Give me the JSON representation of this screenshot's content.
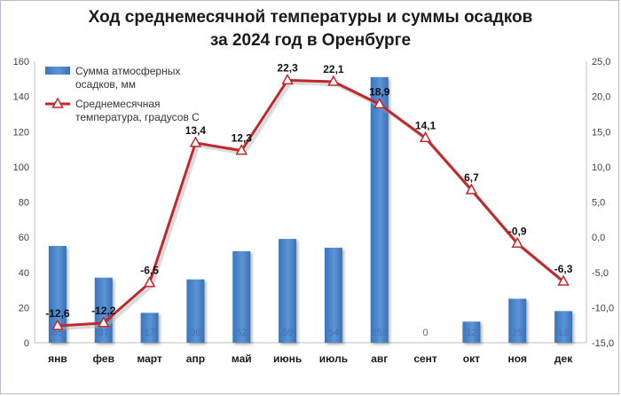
{
  "chart_data": {
    "type": "bar+line",
    "title_line1": "Ход среднемесячной температуры и суммы осадков",
    "title_line2": "за 2024 год в Оренбурге",
    "categories": [
      "янв",
      "фев",
      "март",
      "апр",
      "май",
      "июнь",
      "июль",
      "авг",
      "сент",
      "окт",
      "ноя",
      "дек"
    ],
    "series": [
      {
        "name": "Сумма атмосферных осадков, мм",
        "type": "bar",
        "axis": "left",
        "color": "#4a86c8",
        "values": [
          55,
          37,
          17,
          36,
          52,
          59,
          54,
          151,
          0,
          12,
          25,
          18
        ],
        "labels": [
          "55",
          "37",
          "17",
          "36",
          "52",
          "59",
          "54",
          "151",
          "0",
          "12",
          "25",
          "18"
        ]
      },
      {
        "name": "Среднемесячная температура, градусов С",
        "type": "line",
        "axis": "right",
        "color": "#c0282d",
        "values": [
          -12.6,
          -12.2,
          -6.5,
          13.4,
          12.3,
          22.3,
          22.1,
          18.9,
          14.1,
          6.7,
          -0.9,
          -6.3
        ],
        "labels": [
          "-12,6",
          "-12,2",
          "-6,5",
          "13,4",
          "12,3",
          "22,3",
          "22,1",
          "18,9",
          "14,1",
          "6,7",
          "-0,9",
          "-6,3"
        ]
      }
    ],
    "y_left": {
      "min": 0,
      "max": 160,
      "ticks": [
        0,
        20,
        40,
        60,
        80,
        100,
        120,
        140,
        160
      ],
      "tick_labels": [
        "0",
        "20",
        "40",
        "60",
        "80",
        "100",
        "120",
        "140",
        "160"
      ]
    },
    "y_right": {
      "min": -15,
      "max": 25,
      "ticks": [
        -15,
        -10,
        -5,
        0,
        5,
        10,
        15,
        20,
        25
      ],
      "tick_labels": [
        "-15,0",
        "-10,0",
        "-5,0",
        "0,0",
        "5,0",
        "10,0",
        "15,0",
        "20,0",
        "25,0"
      ]
    },
    "legend": {
      "position": "top-left",
      "line1": [
        "Сумма атмосферных",
        "осадков, мм"
      ],
      "line2": [
        "Среднемесячная",
        "температура, градусов С"
      ]
    },
    "grid": false
  }
}
